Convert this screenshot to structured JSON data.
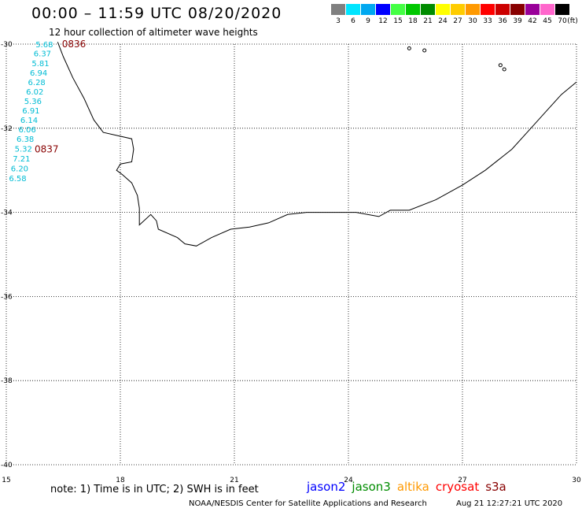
{
  "header": {
    "title": "00:00 – 11:59 UTC 08/20/2020",
    "subtitle": "12 hour collection of altimeter wave heights"
  },
  "color_scale": {
    "unit": "(ft)",
    "entries": [
      {
        "label": "3",
        "color": "#808080"
      },
      {
        "label": "6",
        "color": "#00e5ff"
      },
      {
        "label": "9",
        "color": "#00a8f0"
      },
      {
        "label": "12",
        "color": "#0000ff"
      },
      {
        "label": "15",
        "color": "#44ff44"
      },
      {
        "label": "18",
        "color": "#00c800"
      },
      {
        "label": "21",
        "color": "#008c00"
      },
      {
        "label": "24",
        "color": "#ffff00"
      },
      {
        "label": "27",
        "color": "#ffcc00"
      },
      {
        "label": "30",
        "color": "#ff9900"
      },
      {
        "label": "33",
        "color": "#ff0000"
      },
      {
        "label": "36",
        "color": "#cc0000"
      },
      {
        "label": "39",
        "color": "#880000"
      },
      {
        "label": "42",
        "color": "#990099"
      },
      {
        "label": "45",
        "color": "#ff66cc"
      },
      {
        "label": "70",
        "color": "#000000"
      }
    ]
  },
  "axes": {
    "lon_ticks": [
      "15",
      "18",
      "21",
      "24",
      "27",
      "30"
    ],
    "lat_ticks": [
      "-30",
      "-32",
      "-34",
      "-36",
      "-38",
      "-40"
    ],
    "lon_range": [
      15,
      30
    ],
    "lat_range": [
      -40,
      -30
    ]
  },
  "observations": [
    {
      "lon": 16.0,
      "lat": -30.0,
      "swh": "5.68"
    },
    {
      "lon": 15.95,
      "lat": -30.22,
      "swh": "6.37"
    },
    {
      "lon": 15.9,
      "lat": -30.45,
      "swh": "5.81"
    },
    {
      "lon": 15.85,
      "lat": -30.67,
      "swh": "6.94"
    },
    {
      "lon": 15.8,
      "lat": -30.9,
      "swh": "6.28"
    },
    {
      "lon": 15.75,
      "lat": -31.12,
      "swh": "6.02"
    },
    {
      "lon": 15.7,
      "lat": -31.35,
      "swh": "5.36"
    },
    {
      "lon": 15.65,
      "lat": -31.57,
      "swh": "6.91"
    },
    {
      "lon": 15.6,
      "lat": -31.8,
      "swh": "6.14"
    },
    {
      "lon": 15.55,
      "lat": -32.02,
      "swh": "6.06"
    },
    {
      "lon": 15.5,
      "lat": -32.25,
      "swh": "6.38"
    },
    {
      "lon": 15.45,
      "lat": -32.48,
      "swh": "5.32"
    },
    {
      "lon": 15.4,
      "lat": -32.72,
      "swh": "7.21"
    },
    {
      "lon": 15.35,
      "lat": -32.95,
      "swh": "6.20"
    },
    {
      "lon": 15.3,
      "lat": -33.18,
      "swh": "6.58"
    }
  ],
  "times": [
    {
      "lon": 16.78,
      "lat": -30.0,
      "label": "0836"
    },
    {
      "lon": 16.06,
      "lat": -32.5,
      "label": "0837"
    }
  ],
  "coastline": [
    [
      16.35,
      -29.95
    ],
    [
      16.5,
      -30.3
    ],
    [
      16.75,
      -30.8
    ],
    [
      17.05,
      -31.3
    ],
    [
      17.3,
      -31.8
    ],
    [
      17.55,
      -32.1
    ],
    [
      18.3,
      -32.25
    ],
    [
      18.35,
      -32.5
    ],
    [
      18.3,
      -32.8
    ],
    [
      18.0,
      -32.85
    ],
    [
      17.9,
      -33.0
    ],
    [
      18.05,
      -33.1
    ],
    [
      18.3,
      -33.3
    ],
    [
      18.45,
      -33.6
    ],
    [
      18.5,
      -33.9
    ],
    [
      18.5,
      -34.3
    ],
    [
      18.8,
      -34.05
    ],
    [
      18.95,
      -34.2
    ],
    [
      19.0,
      -34.4
    ],
    [
      19.5,
      -34.6
    ],
    [
      19.7,
      -34.75
    ],
    [
      20.0,
      -34.8
    ],
    [
      20.4,
      -34.6
    ],
    [
      20.9,
      -34.4
    ],
    [
      21.4,
      -34.35
    ],
    [
      21.9,
      -34.25
    ],
    [
      22.4,
      -34.05
    ],
    [
      22.9,
      -34.0
    ],
    [
      23.6,
      -34.0
    ],
    [
      24.2,
      -34.0
    ],
    [
      24.8,
      -34.1
    ],
    [
      25.1,
      -33.95
    ],
    [
      25.6,
      -33.95
    ],
    [
      26.3,
      -33.7
    ],
    [
      27.0,
      -33.35
    ],
    [
      27.6,
      -33.0
    ],
    [
      28.3,
      -32.5
    ],
    [
      28.8,
      -32.0
    ],
    [
      29.2,
      -31.6
    ],
    [
      29.6,
      -31.2
    ],
    [
      30.0,
      -30.9
    ]
  ],
  "islands": [
    [
      25.6,
      -30.1
    ],
    [
      26.0,
      -30.15
    ],
    [
      28.0,
      -30.5
    ],
    [
      28.1,
      -30.6
    ]
  ],
  "footer": {
    "note": "note: 1) Time is in UTC; 2) SWH is in feet",
    "satellites": [
      {
        "name": "jason2",
        "color": "#0000ff"
      },
      {
        "name": "jason3",
        "color": "#008c00"
      },
      {
        "name": "altika",
        "color": "#ff9900"
      },
      {
        "name": "cryosat",
        "color": "#ff0000"
      },
      {
        "name": "s3a",
        "color": "#880000"
      }
    ],
    "credit": "NOAA/NESDIS Center for Satellite Applications and Research",
    "timestamp": "Aug 21 12:27:21 UTC 2020"
  }
}
